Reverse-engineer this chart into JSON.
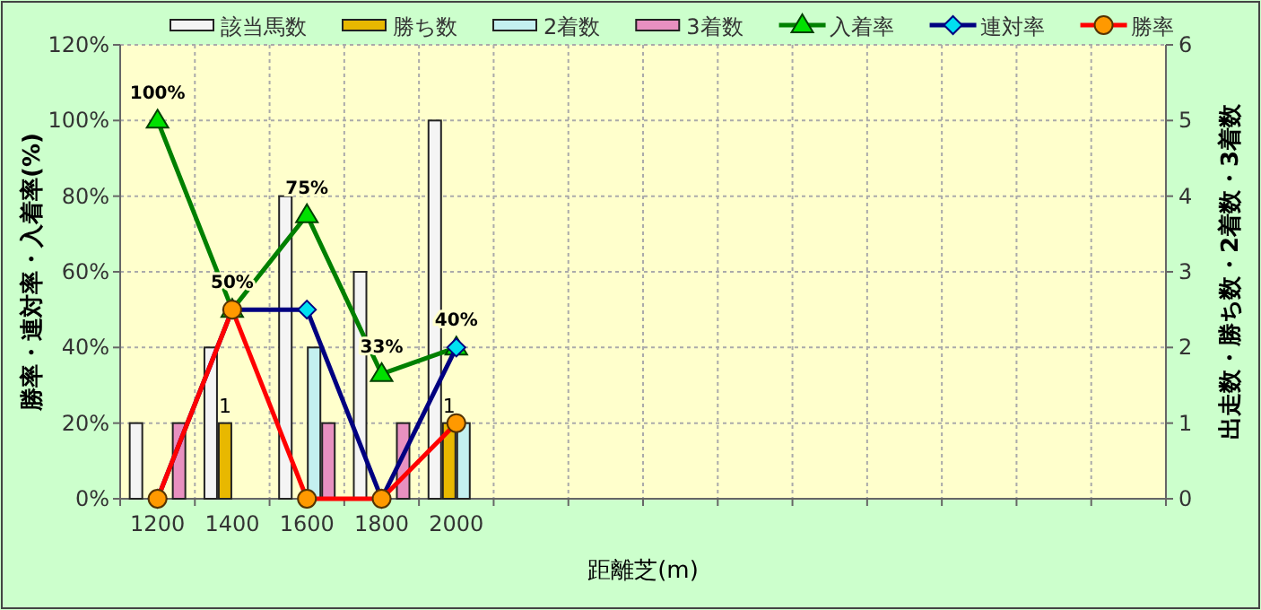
{
  "chart_data": {
    "type": "bar",
    "xlabel": "距離芝(m)",
    "ylabel": "勝率・連対率・入着率(%)",
    "y2label": "出走数・勝ち数・2着数・3着数",
    "categories": [
      "1200",
      "1400",
      "1600",
      "1800",
      "2000",
      null,
      null,
      null,
      null,
      null,
      null,
      null,
      null,
      null
    ],
    "series": [
      {
        "name": "該当馬数",
        "axis": "y2",
        "color": "#f4f4f4",
        "values": [
          1,
          2,
          4,
          3,
          5,
          null,
          null,
          null,
          null,
          null,
          null,
          null,
          null,
          null
        ]
      },
      {
        "name": "勝ち数",
        "axis": "y2",
        "color": "#e8b800",
        "values": [
          0,
          1,
          0,
          0,
          1,
          null,
          null,
          null,
          null,
          null,
          null,
          null,
          null,
          null
        ],
        "value_labels": [
          null,
          "1",
          null,
          null,
          "1",
          null,
          null,
          null,
          null,
          null,
          null,
          null,
          null,
          null
        ]
      },
      {
        "name": "2着数",
        "axis": "y2",
        "color": "#c4f0f0",
        "values": [
          0,
          0,
          2,
          0,
          1,
          null,
          null,
          null,
          null,
          null,
          null,
          null,
          null,
          null
        ]
      },
      {
        "name": "3着数",
        "axis": "y2",
        "color": "#e890c0",
        "values": [
          1,
          0,
          1,
          1,
          0,
          null,
          null,
          null,
          null,
          null,
          null,
          null,
          null,
          null
        ]
      },
      {
        "name": "入着率",
        "type": "line",
        "color": "#008000",
        "marker": "triangle",
        "values": [
          100,
          50,
          75,
          33,
          40,
          null,
          null,
          null,
          null,
          null,
          null,
          null,
          null,
          null
        ],
        "value_labels": [
          "100%",
          "50%",
          "75%",
          "33%",
          "40%",
          null,
          null,
          null,
          null,
          null,
          null,
          null,
          null,
          null
        ]
      },
      {
        "name": "連対率",
        "type": "line",
        "color": "#000080",
        "marker": "diamond",
        "values": [
          0,
          50,
          50,
          0,
          40,
          null,
          null,
          null,
          null,
          null,
          null,
          null,
          null,
          null
        ]
      },
      {
        "name": "勝率",
        "type": "line",
        "color": "#ff0000",
        "marker": "circle",
        "values": [
          0,
          50,
          0,
          0,
          20,
          null,
          null,
          null,
          null,
          null,
          null,
          null,
          null,
          null
        ]
      }
    ],
    "ylim": [
      0,
      120
    ],
    "yticks": [
      {
        "value": 0,
        "label": "0%"
      },
      {
        "value": 20,
        "label": "20%"
      },
      {
        "value": 40,
        "label": "40%"
      },
      {
        "value": 60,
        "label": "60%"
      },
      {
        "value": 80,
        "label": "80%"
      },
      {
        "value": 100,
        "label": "100%"
      },
      {
        "value": 120,
        "label": "120%"
      }
    ],
    "y2lim": [
      0,
      6
    ],
    "y2ticks": [
      0,
      1,
      2,
      3,
      4,
      5,
      6
    ],
    "grid": true,
    "legend": "top"
  }
}
